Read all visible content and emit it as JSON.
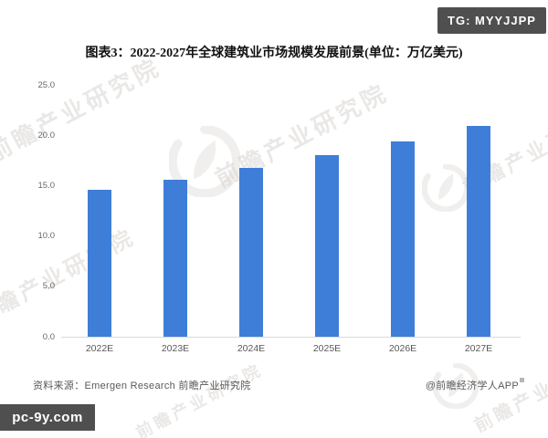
{
  "header": {
    "title": "图表3：2022-2027年全球建筑业市场规模发展前景(单位：万亿美元)"
  },
  "badges": {
    "top_right": "TG: MYYJJPP",
    "bottom_left": "pc-9y.com"
  },
  "footer": {
    "source": "资料来源：Emergen Research 前瞻产业研究院",
    "credit": "@前瞻经济学人APP"
  },
  "watermark": {
    "text": "前瞻产业研究院",
    "logo": "qianzhan-logo"
  },
  "colors": {
    "bar": "#3E7ED8",
    "axis_line": "#D9D9D9",
    "badge_bg": "#4F4F4F",
    "tick_label": "#666666",
    "footer_text": "#595959",
    "watermark": "#E9E6E1"
  },
  "chart_data": {
    "type": "bar",
    "title": "图表3：2022-2027年全球建筑业市场规模发展前景(单位：万亿美元)",
    "unit": "万亿美元",
    "categories": [
      "2022E",
      "2023E",
      "2024E",
      "2025E",
      "2026E",
      "2027E"
    ],
    "values": [
      14.6,
      15.6,
      16.8,
      18.0,
      19.4,
      20.9
    ],
    "xlabel": "",
    "ylabel": "",
    "ylim": [
      0,
      25
    ],
    "yticks": [
      0,
      5,
      10,
      15,
      20,
      25
    ],
    "ytick_labels": [
      "0.0",
      "5.0",
      "10.0",
      "15.0",
      "20.0",
      "25.0"
    ],
    "grid": false,
    "legend": null,
    "bar_color": "#3E7ED8"
  }
}
